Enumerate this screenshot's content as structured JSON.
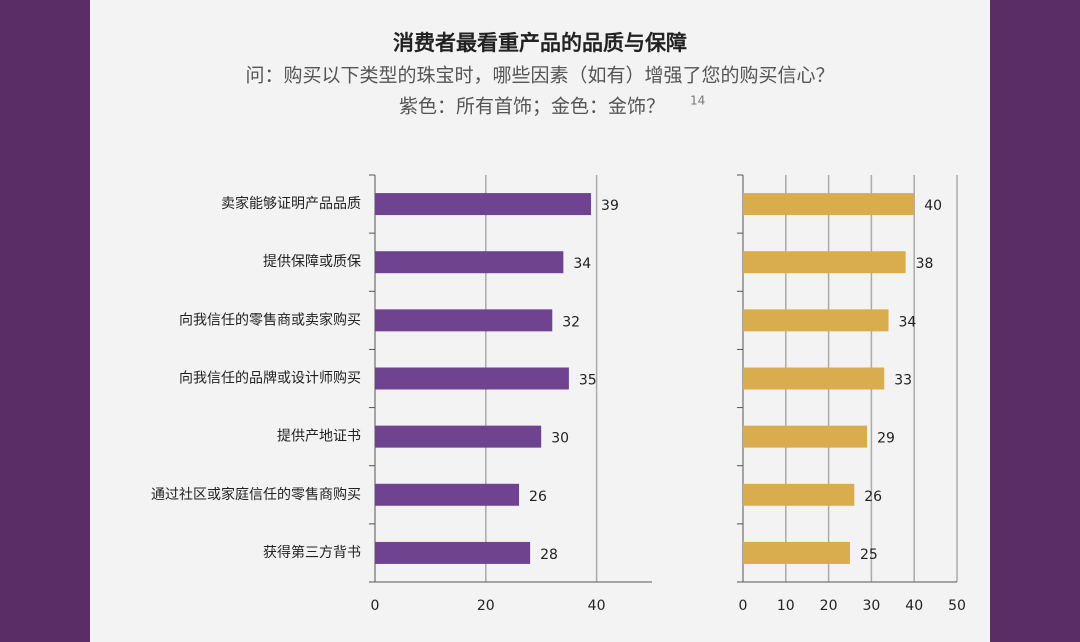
{
  "title": "消费者最看重产品的品质与保障",
  "subtitle": "问：购买以下类型的珠宝时，哪些因素（如有）增强了您的购买信心？",
  "subtitle2": "紫色：所有首饰；金色：金饰？",
  "footnote": "14",
  "chart_data": [
    {
      "type": "bar",
      "orientation": "horizontal",
      "categories": [
        "卖家能够证明产品品质",
        "提供保障或质保",
        "向我信任的零售商或卖家购买",
        "向我信任的品牌或设计师购买",
        "提供产地证书",
        "通过社区或家庭信任的零售商购买",
        "获得第三方背书"
      ],
      "values": [
        39,
        34,
        32,
        35,
        30,
        26,
        28
      ],
      "color": "#6f4390",
      "xlim": [
        0,
        50
      ],
      "xticks": [
        0,
        20,
        40
      ],
      "grid": true
    },
    {
      "type": "bar",
      "orientation": "horizontal",
      "values": [
        40,
        38,
        34,
        33,
        29,
        26,
        25
      ],
      "color": "#d9ad4e",
      "xlim": [
        0,
        50
      ],
      "xticks": [
        0,
        10,
        20,
        30,
        40,
        50
      ],
      "grid": true
    }
  ]
}
